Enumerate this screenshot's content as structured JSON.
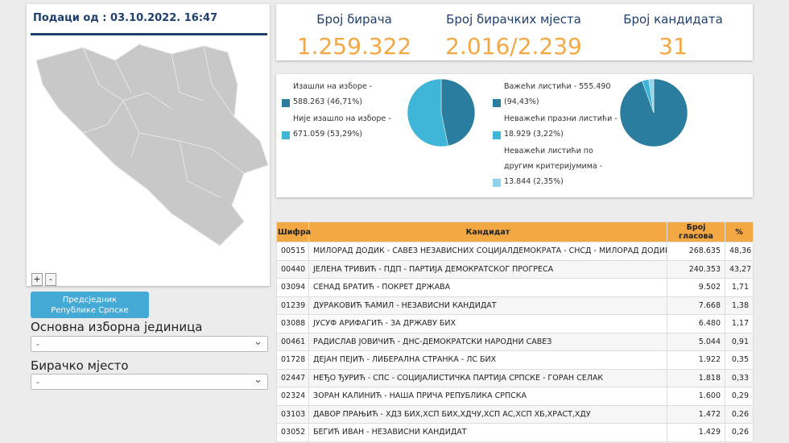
{
  "sidebar": {
    "updated": "Подаци од : 03.10.2022. 16:47",
    "zoom_in": "+",
    "zoom_out": "-",
    "election_button": "Предсједник Републике Српске",
    "unit_label": "Основна изборна јединица",
    "unit_value": "-",
    "station_label": "Бирачко мјесто",
    "station_value": "-"
  },
  "stats": [
    {
      "label": "Број бирача",
      "value": "1.259.322"
    },
    {
      "label": "Број бирачких мјеста",
      "value": "2.016/2.239"
    },
    {
      "label": "Број кандидата",
      "value": "31"
    }
  ],
  "turnout": {
    "items": [
      {
        "lines": [
          "Изашли на изборе -",
          "588.263 (46,71%)"
        ],
        "percent": 46.71,
        "color": "#2a7d9f"
      },
      {
        "lines": [
          "Није изашло на изборе -",
          "671.059 (53,29%)"
        ],
        "percent": 53.29,
        "color": "#3fb6d8"
      }
    ]
  },
  "ballots": {
    "items": [
      {
        "lines": [
          "Важећи листићи - 555.490",
          "(94,43%)"
        ],
        "percent": 94.43,
        "color": "#2a7d9f"
      },
      {
        "lines": [
          "Неважећи празни листићи -",
          "18.929 (3,22%)"
        ],
        "percent": 3.22,
        "color": "#3fb6d8"
      },
      {
        "lines": [
          "Неважећи листићи по",
          "другим критеријумима -",
          "13.844 (2,35%)"
        ],
        "percent": 2.35,
        "color": "#8fd3ea"
      }
    ]
  },
  "table": {
    "columns": [
      "Шифра",
      "Кандидат",
      "Број гласова",
      "%"
    ],
    "rows": [
      [
        "00515",
        "МИЛОРАД ДОДИК - САВЕЗ НЕЗАВИСНИХ СОЦИЈАЛДЕМОКРАТА - СНСД - МИЛОРАД ДОДИК",
        "268.635",
        "48,36"
      ],
      [
        "00440",
        "ЈЕЛЕНА ТРИВИЋ - ПДП - ПАРТИЈА ДЕМОКРАТСКОГ ПРОГРЕСА",
        "240.353",
        "43,27"
      ],
      [
        "03094",
        "СЕНАД БРАТИЋ - ПОКРЕТ ДРЖАВА",
        "9.502",
        "1,71"
      ],
      [
        "01239",
        "ДУРАКОВИЋ ЋАМИЛ - НЕЗАВИСНИ КАНДИДАТ",
        "7.668",
        "1,38"
      ],
      [
        "03088",
        "ЈУСУФ АРИФАГИЋ - ЗА ДРЖАВУ БИХ",
        "6.480",
        "1,17"
      ],
      [
        "00461",
        "РАДИСЛАВ ЈОВИЧИЋ - ДНС-ДЕМОКРАТСКИ НАРОДНИ САВЕЗ",
        "5.044",
        "0,91"
      ],
      [
        "01728",
        "ДЕЈАН ПЕЈИЋ - ЛИБЕРАЛНА СТРАНКА - ЛС БИХ",
        "1.922",
        "0,35"
      ],
      [
        "02447",
        "НЕЂО ЂУРИЋ - СПС - СОЦИЈАЛИСТИЧКА ПАРТИЈА СРПСКЕ - ГОРАН СЕЛАК",
        "1.818",
        "0,33"
      ],
      [
        "02324",
        "ЗОРАН КАЛИНИЋ - НАША ПРИЧА РЕПУБЛИКА СРПСКА",
        "1.600",
        "0,29"
      ],
      [
        "03103",
        "ДАВОР ПРАЊИЋ - ХДЗ БИХ,ХСП БИХ,ХДЧУ,ХСП АС,ХСП ХБ,ХРАСТ,ХДУ",
        "1.472",
        "0,26"
      ],
      [
        "03052",
        "БЕГИЋ ИВАН - НЕЗАВИСНИ КАНДИДАТ",
        "1.429",
        "0,26"
      ]
    ]
  }
}
